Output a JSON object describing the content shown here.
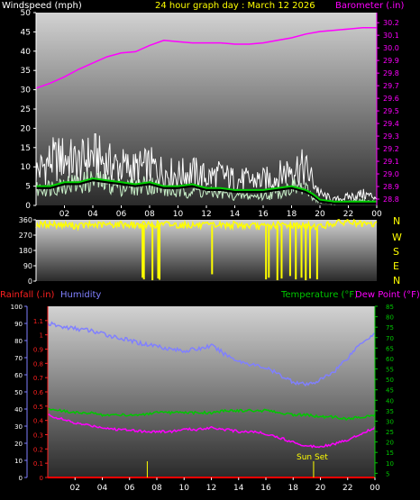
{
  "colors": {
    "wind_gust": "#ffffff",
    "wind_avg": "#c8f0c8",
    "wind_mean": "#00d000",
    "wind_shadow": "#000000",
    "barometer": "#ff00ff",
    "direction": "#ffff00",
    "rain_axis": "#ff2020",
    "humidity": "#8080ff",
    "temperature": "#00c800",
    "dewpoint": "#ff00ff",
    "rain": "#ff0000",
    "sunset": "#ffff00",
    "label": "#ffffff"
  },
  "header": {
    "windspeed_label": "Windspeed (mph)",
    "title": "24 hour graph day : March 12 2026",
    "barometer_label": "Barometer (.in)"
  },
  "bottom_header": {
    "rainfall_label": "Rainfall (.in)",
    "humidity_label": "Humidity",
    "temperature_label": "Temperature (°F)",
    "dewpoint_label": "Dew Point (°F)"
  },
  "x_ticks": [
    "02",
    "04",
    "06",
    "08",
    "10",
    "12",
    "14",
    "16",
    "18",
    "20",
    "22",
    "00"
  ],
  "compass": [
    "N",
    "W",
    "S",
    "E",
    "N"
  ],
  "sunset_label": "Sun Set",
  "chart_data": [
    {
      "type": "line",
      "name_key": "wind_baro",
      "xlabel": "",
      "ylabel": "Windspeed (mph)",
      "ylabel_right": "Barometer (.in)",
      "x_range": [
        0,
        24
      ],
      "ylim": [
        0,
        50
      ],
      "yticks": [
        0,
        5,
        10,
        15,
        20,
        25,
        30,
        35,
        40,
        45,
        50
      ],
      "ylim_right": [
        28.75,
        30.28
      ],
      "yticks_right": [
        28.8,
        28.9,
        29.0,
        29.1,
        29.2,
        29.3,
        29.4,
        29.5,
        29.6,
        29.7,
        29.8,
        29.9,
        30.0,
        30.1,
        30.2
      ],
      "series": [
        {
          "key": "gust",
          "x": [
            0,
            1,
            2,
            3,
            4,
            5,
            6,
            7,
            8,
            9,
            10,
            11,
            12,
            13,
            14,
            15,
            16,
            17,
            18,
            19,
            19.5,
            20,
            21,
            22,
            23,
            24
          ],
          "values": [
            12,
            16,
            17,
            15,
            18,
            15,
            14,
            13,
            14,
            12,
            11,
            12,
            10,
            11,
            9,
            9,
            9,
            10,
            14,
            13,
            9,
            4,
            2,
            3,
            4,
            3
          ]
        },
        {
          "key": "avg",
          "x": [
            0,
            1,
            2,
            3,
            4,
            5,
            6,
            7,
            8,
            9,
            10,
            11,
            12,
            13,
            14,
            15,
            16,
            17,
            18,
            19,
            19.5,
            20,
            21,
            22,
            23,
            24
          ],
          "values": [
            5,
            6,
            7,
            7,
            8,
            7,
            6,
            6,
            7,
            5,
            4,
            5,
            4,
            4,
            3,
            3,
            3,
            4,
            6,
            5,
            3,
            1,
            0.5,
            1,
            1.5,
            1
          ]
        },
        {
          "key": "mean",
          "x": [
            0,
            1,
            2,
            3,
            4,
            5,
            6,
            7,
            8,
            9,
            10,
            11,
            12,
            13,
            14,
            15,
            16,
            17,
            18,
            19,
            19.5,
            20,
            21,
            22,
            23,
            24
          ],
          "values": [
            5,
            5,
            6,
            6,
            7,
            6.5,
            6,
            5.5,
            6,
            5,
            5,
            5.5,
            4.5,
            4.5,
            4,
            4,
            4,
            4.5,
            5,
            4,
            3,
            1.5,
            1,
            1,
            1,
            1
          ]
        },
        {
          "key": "barometer",
          "axis": "right",
          "x": [
            0,
            1,
            2,
            3,
            4,
            5,
            6,
            7,
            8,
            9,
            10,
            11,
            12,
            13,
            14,
            15,
            16,
            17,
            18,
            19,
            20,
            21,
            22,
            23,
            24
          ],
          "values": [
            29.68,
            29.72,
            29.77,
            29.83,
            29.88,
            29.93,
            29.96,
            29.97,
            30.02,
            30.06,
            30.05,
            30.04,
            30.04,
            30.04,
            30.03,
            30.03,
            30.04,
            30.06,
            30.08,
            30.11,
            30.13,
            30.14,
            30.15,
            30.16,
            30.16
          ]
        }
      ]
    },
    {
      "type": "scatter",
      "name_key": "wind_direction",
      "ylabel": "",
      "x_range": [
        0,
        24
      ],
      "ylim": [
        0,
        360
      ],
      "yticks": [
        0,
        90,
        180,
        270,
        360
      ],
      "series": [
        {
          "key": "direction_base",
          "x": [
            0,
            1,
            2,
            3,
            4,
            5,
            6,
            7,
            8,
            9,
            10,
            11,
            12,
            13,
            14,
            15,
            16,
            17,
            18,
            19,
            20,
            21,
            22,
            23,
            24
          ],
          "values": [
            330,
            335,
            330,
            325,
            330,
            330,
            335,
            330,
            330,
            335,
            330,
            330,
            325,
            330,
            330,
            325,
            320,
            330,
            330,
            325,
            320,
            340,
            350,
            330,
            335
          ]
        },
        {
          "key": "direction_drops",
          "x": [
            7.5,
            7.6,
            8.2,
            8.6,
            8.7,
            12.4,
            16.2,
            16.4,
            17.0,
            17.3,
            17.9,
            18.3,
            18.7,
            19.0,
            19.3,
            19.8
          ],
          "values": [
            20,
            10,
            5,
            15,
            8,
            40,
            10,
            20,
            5,
            15,
            30,
            10,
            20,
            5,
            15,
            10
          ]
        }
      ]
    },
    {
      "type": "line",
      "name_key": "temp_hum",
      "xlabel": "",
      "ylabel": "Humidity",
      "ylabel_right": "Temperature (°F)",
      "x_range": [
        0,
        24
      ],
      "ylim": [
        0,
        100
      ],
      "yticks": [
        0,
        10,
        20,
        30,
        40,
        50,
        60,
        70,
        80,
        90,
        100
      ],
      "ylim_rain": [
        0,
        1.2
      ],
      "yticks_rain": [
        0,
        0.1,
        0.2,
        0.3,
        0.4,
        0.5,
        0.6,
        0.7,
        0.8,
        0.9,
        1,
        1.1
      ],
      "ylim_right": [
        3,
        85
      ],
      "yticks_right": [
        5,
        10,
        15,
        20,
        25,
        30,
        35,
        40,
        45,
        50,
        55,
        60,
        65,
        70,
        75,
        80,
        85
      ],
      "series": [
        {
          "key": "humidity",
          "axis": "left",
          "x": [
            0,
            1,
            2,
            3,
            4,
            5,
            6,
            7,
            8,
            9,
            10,
            11,
            12,
            13,
            14,
            15,
            16,
            17,
            18,
            19,
            20,
            21,
            22,
            23,
            24
          ],
          "values": [
            90,
            88,
            87,
            86,
            84,
            82,
            80,
            78,
            77,
            75,
            74,
            75,
            77,
            72,
            68,
            66,
            64,
            60,
            56,
            54,
            57,
            62,
            70,
            79,
            84
          ]
        },
        {
          "key": "temperature",
          "axis": "right",
          "x": [
            0,
            1,
            2,
            3,
            4,
            5,
            6,
            7,
            8,
            9,
            10,
            11,
            12,
            13,
            14,
            15,
            16,
            17,
            18,
            19,
            20,
            21,
            22,
            23,
            24
          ],
          "values": [
            36,
            35,
            34,
            34,
            33,
            33,
            33,
            33,
            34,
            34,
            34,
            34,
            34,
            35,
            35,
            35,
            35,
            34,
            33,
            33,
            32,
            32,
            31,
            32,
            33
          ]
        },
        {
          "key": "dewpoint",
          "axis": "right",
          "x": [
            0,
            1,
            2,
            3,
            4,
            5,
            6,
            7,
            8,
            9,
            10,
            11,
            12,
            13,
            14,
            15,
            16,
            17,
            18,
            19,
            20,
            21,
            22,
            23,
            24
          ],
          "values": [
            33,
            31,
            29,
            28,
            27,
            26,
            26,
            25,
            25,
            25,
            26,
            26,
            27,
            26,
            25,
            25,
            24,
            22,
            20,
            18,
            18,
            19,
            21,
            24,
            27
          ]
        },
        {
          "key": "rain",
          "axis": "rain",
          "x": [
            0,
            24
          ],
          "values": [
            0,
            0
          ]
        }
      ],
      "markers": [
        {
          "key": "sunset",
          "x": 19.5,
          "label": "Sun Set"
        },
        {
          "key": "tick_event",
          "x": 7.3
        }
      ]
    }
  ]
}
